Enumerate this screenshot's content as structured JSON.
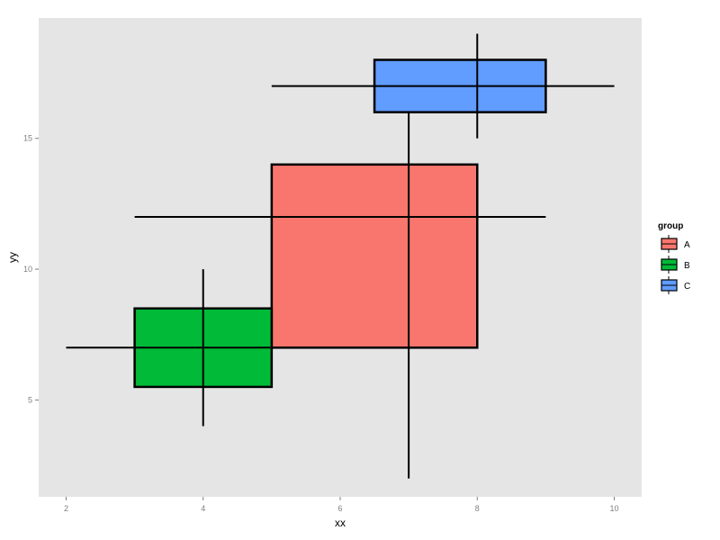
{
  "chart_data": {
    "type": "crossbar",
    "xlabel": "xx",
    "ylabel": "yy",
    "xlim": [
      1.6,
      10.4
    ],
    "ylim": [
      1.3,
      19.6
    ],
    "xticks": [
      2,
      4,
      6,
      8,
      10
    ],
    "yticks": [
      5,
      10,
      15
    ],
    "grid": false,
    "legend": {
      "title": "group",
      "position": "right"
    },
    "series": [
      {
        "name": "A",
        "color": "#F8766D",
        "x": 7,
        "y": 12,
        "xmin": 3,
        "xmax": 9,
        "ymin": 2,
        "ymax": 16.2,
        "box_xmin": 5,
        "box_xmax": 8,
        "box_ymin": 7,
        "box_ymax": 14
      },
      {
        "name": "B",
        "color": "#00BA38",
        "x": 4,
        "y": 7,
        "xmin": 2,
        "xmax": 5,
        "ymin": 4,
        "ymax": 10,
        "box_xmin": 3,
        "box_xmax": 5,
        "box_ymin": 5.5,
        "box_ymax": 8.5
      },
      {
        "name": "C",
        "color": "#619CFF",
        "x": 8,
        "y": 17,
        "xmin": 5,
        "xmax": 10,
        "ymin": 15,
        "ymax": 19,
        "box_xmin": 6.5,
        "box_xmax": 9,
        "box_ymin": 16,
        "box_ymax": 18
      }
    ]
  }
}
